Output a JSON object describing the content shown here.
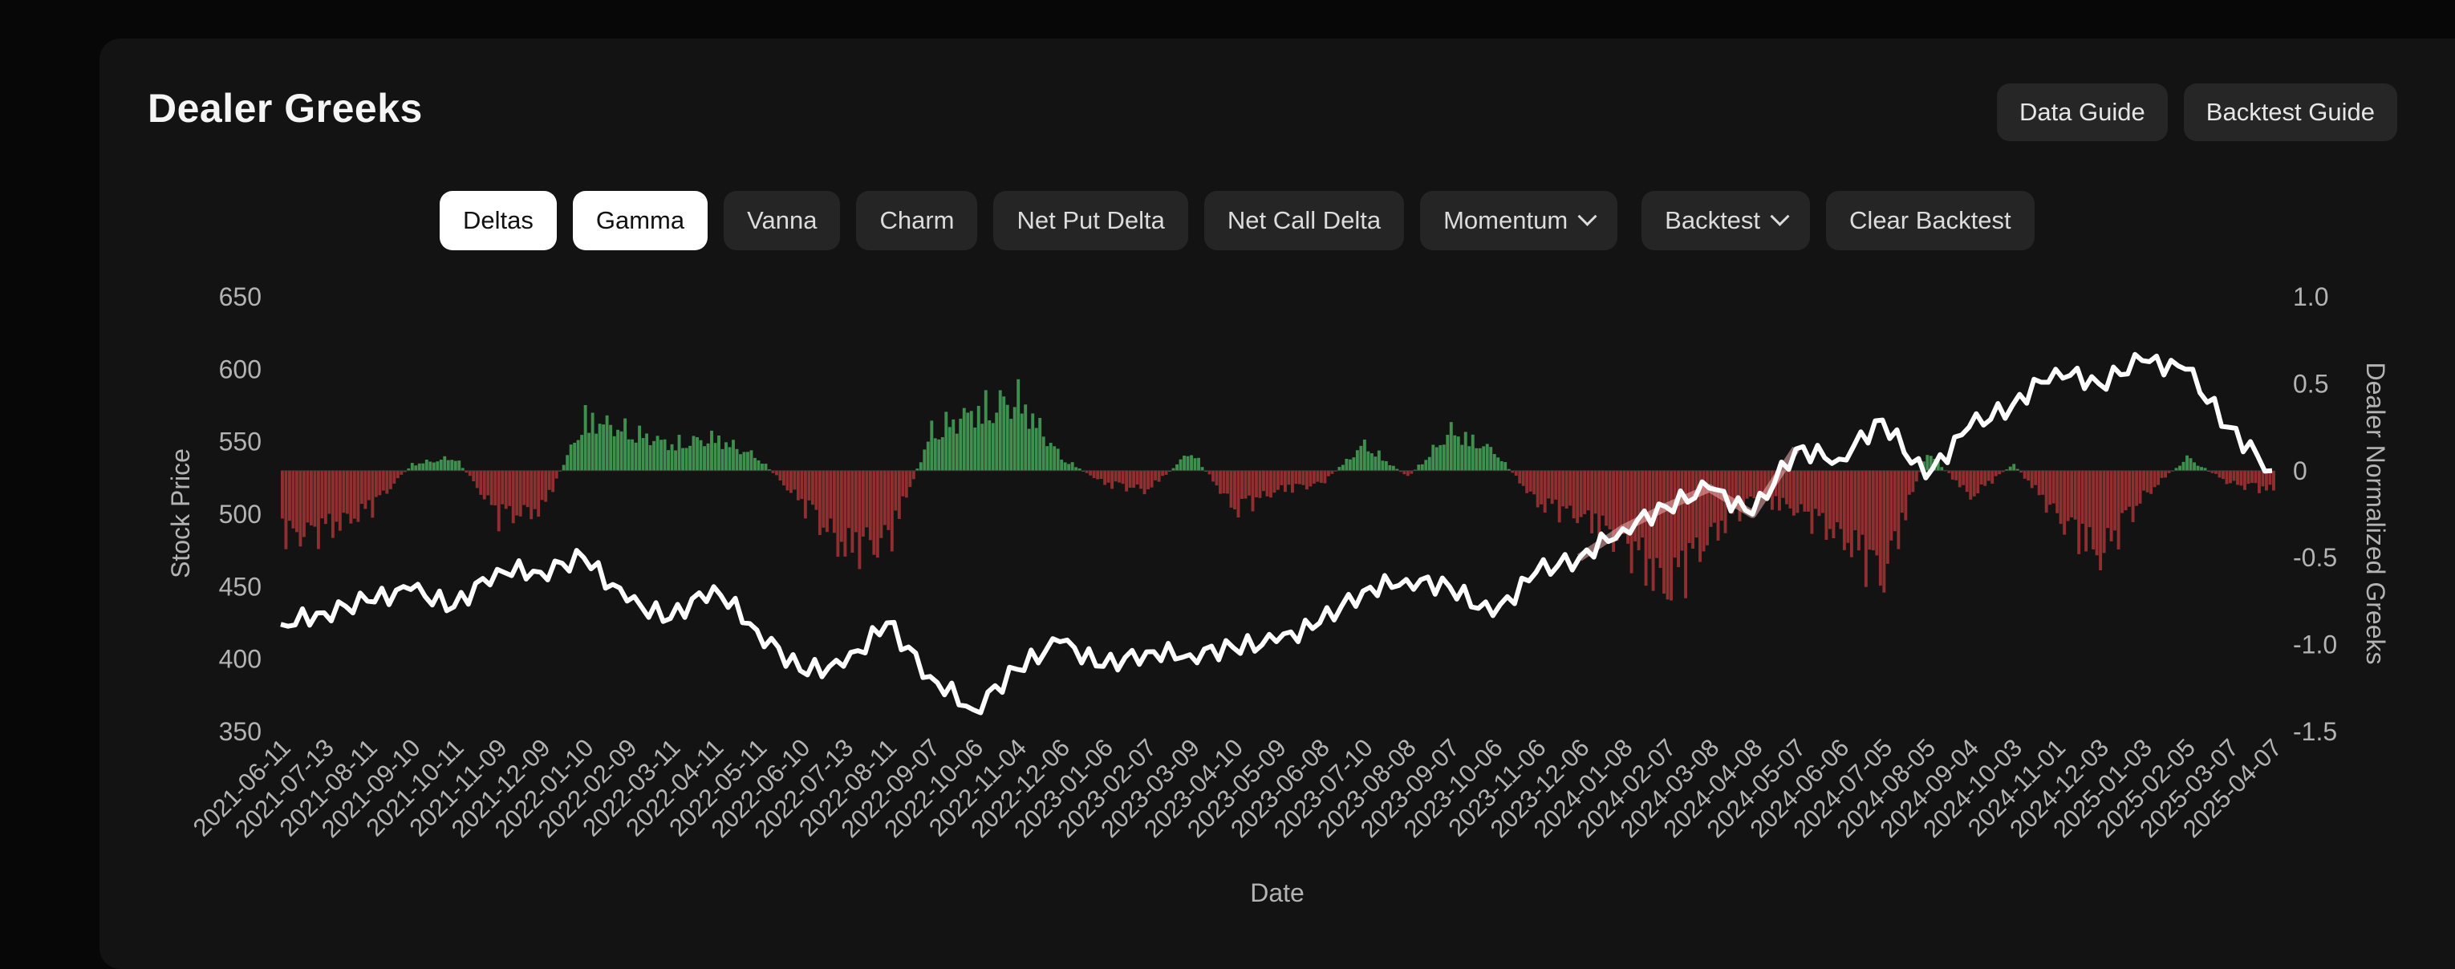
{
  "header": {
    "title": "Dealer Greeks"
  },
  "guides": [
    {
      "label": "Data Guide"
    },
    {
      "label": "Backtest Guide"
    }
  ],
  "tabs": [
    {
      "label": "Deltas",
      "active": true,
      "dropdown": false
    },
    {
      "label": "Gamma",
      "active": true,
      "dropdown": false
    },
    {
      "label": "Vanna",
      "active": false,
      "dropdown": false
    },
    {
      "label": "Charm",
      "active": false,
      "dropdown": false
    },
    {
      "label": "Net Put Delta",
      "active": false,
      "dropdown": false
    },
    {
      "label": "Net Call Delta",
      "active": false,
      "dropdown": false
    },
    {
      "label": "Momentum",
      "active": false,
      "dropdown": true
    },
    {
      "label": "Backtest",
      "active": false,
      "dropdown": true
    },
    {
      "label": "Clear Backtest",
      "active": false,
      "dropdown": false
    }
  ],
  "colors": {
    "positive_bar": "#3f8f4f",
    "negative_bar": "#8f2f2f",
    "price_line": "#ffffff",
    "backtest_line": "#f2b3b3",
    "active_tab_bg": "#ffffff",
    "tab_bg": "#252525"
  },
  "chart_data": {
    "type": "line+bar",
    "xlabel": "Date",
    "ylabel_left": "Stock Price",
    "ylabel_right": "Dealer Normalized Greeks",
    "yticks_left": [
      "650",
      "600",
      "550",
      "500",
      "450",
      "400",
      "350"
    ],
    "yticks_right": [
      "1.0",
      "0.5",
      "0",
      "-0.5",
      "-1.0",
      "-1.5"
    ],
    "ylim_left": [
      350,
      650
    ],
    "ylim_right": [
      -1.5,
      1.0
    ],
    "xticks": [
      "2021-06-11",
      "2021-07-13",
      "2021-08-11",
      "2021-09-10",
      "2021-10-11",
      "2021-11-09",
      "2021-12-09",
      "2022-01-10",
      "2022-02-09",
      "2022-03-11",
      "2022-04-11",
      "2022-05-11",
      "2022-06-10",
      "2022-07-13",
      "2022-08-11",
      "2022-09-07",
      "2022-10-06",
      "2022-11-04",
      "2022-12-06",
      "2023-01-06",
      "2023-02-07",
      "2023-03-09",
      "2023-04-10",
      "2023-05-09",
      "2023-06-08",
      "2023-07-10",
      "2023-08-08",
      "2023-09-07",
      "2023-10-06",
      "2023-11-06",
      "2023-12-06",
      "2024-01-08",
      "2024-02-07",
      "2024-03-08",
      "2024-04-08",
      "2024-05-07",
      "2024-06-06",
      "2024-07-05",
      "2024-08-05",
      "2024-09-04",
      "2024-10-03",
      "2024-11-01",
      "2024-12-03",
      "2025-01-03",
      "2025-02-05",
      "2025-03-07",
      "2025-04-07"
    ],
    "series": [
      {
        "name": "Stock Price",
        "axis": "left",
        "x": [
          "2021-06-11",
          "2021-07-13",
          "2021-08-11",
          "2021-09-10",
          "2021-10-11",
          "2021-11-09",
          "2021-12-09",
          "2022-01-10",
          "2022-02-09",
          "2022-03-11",
          "2022-04-11",
          "2022-05-11",
          "2022-06-10",
          "2022-07-13",
          "2022-08-11",
          "2022-09-07",
          "2022-10-06",
          "2022-11-04",
          "2022-12-06",
          "2023-01-06",
          "2023-02-07",
          "2023-03-09",
          "2023-04-10",
          "2023-05-09",
          "2023-06-08",
          "2023-07-10",
          "2023-08-08",
          "2023-09-07",
          "2023-10-06",
          "2023-11-06",
          "2023-12-06",
          "2024-01-08",
          "2024-02-07",
          "2024-03-08",
          "2024-04-08",
          "2024-05-07",
          "2024-06-06",
          "2024-07-05",
          "2024-08-05",
          "2024-09-04",
          "2024-10-03",
          "2024-11-01",
          "2024-12-03",
          "2025-01-03",
          "2025-02-05",
          "2025-03-07",
          "2025-04-07"
        ],
        "values": [
          424,
          432,
          440,
          448,
          436,
          462,
          460,
          470,
          440,
          428,
          450,
          420,
          392,
          395,
          425,
          388,
          365,
          393,
          412,
          395,
          405,
          403,
          408,
          412,
          425,
          447,
          455,
          450,
          430,
          460,
          470,
          490,
          505,
          518,
          500,
          545,
          538,
          565,
          525,
          560,
          575,
          600,
          590,
          606,
          600,
          560,
          530
        ]
      },
      {
        "name": "Dealer Normalized Greeks",
        "axis": "right",
        "x": [
          "2021-06-11",
          "2021-07-13",
          "2021-08-11",
          "2021-09-10",
          "2021-10-11",
          "2021-11-09",
          "2021-12-09",
          "2022-01-10",
          "2022-02-09",
          "2022-03-11",
          "2022-04-11",
          "2022-05-11",
          "2022-06-10",
          "2022-07-13",
          "2022-08-11",
          "2022-09-07",
          "2022-10-06",
          "2022-11-04",
          "2022-12-06",
          "2023-01-06",
          "2023-02-07",
          "2023-03-09",
          "2023-04-10",
          "2023-05-09",
          "2023-06-08",
          "2023-07-10",
          "2023-08-08",
          "2023-09-07",
          "2023-10-06",
          "2023-11-06",
          "2023-12-06",
          "2024-01-08",
          "2024-02-07",
          "2024-03-08",
          "2024-04-08",
          "2024-05-07",
          "2024-06-06",
          "2024-07-05",
          "2024-08-05",
          "2024-09-04",
          "2024-10-03",
          "2024-11-01",
          "2024-12-03",
          "2025-01-03",
          "2025-02-05",
          "2025-03-07",
          "2025-04-07"
        ],
        "values": [
          -0.5,
          -0.45,
          -0.3,
          0.05,
          0.1,
          -0.35,
          -0.3,
          0.4,
          0.3,
          0.2,
          0.25,
          0.1,
          -0.25,
          -0.6,
          -0.55,
          0.3,
          0.45,
          0.55,
          0.1,
          -0.1,
          -0.15,
          0.15,
          -0.3,
          -0.15,
          -0.1,
          0.2,
          -0.05,
          0.3,
          0.15,
          -0.25,
          -0.35,
          -0.55,
          -0.9,
          -0.5,
          -0.2,
          -0.3,
          -0.5,
          -0.8,
          0.15,
          -0.2,
          0.05,
          -0.35,
          -0.65,
          -0.2,
          0.1,
          -0.1,
          -0.15
        ]
      }
    ]
  }
}
